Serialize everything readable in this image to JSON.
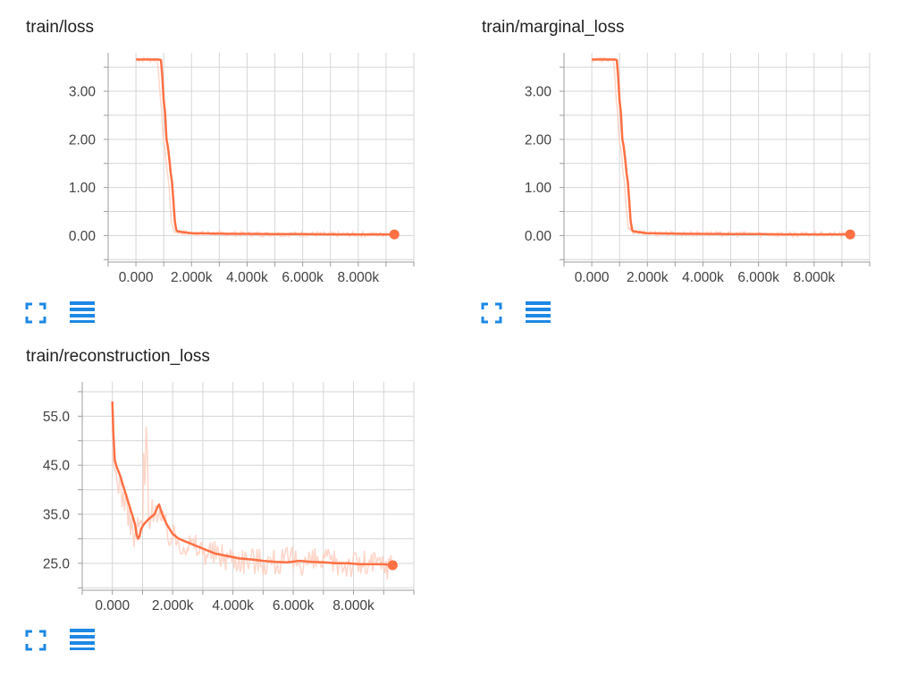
{
  "colors": {
    "line": "#ff7043",
    "raw": "#ffccbc",
    "grid": "#d6d6d6",
    "axis": "#9e9e9e",
    "icon": "#1e88e5"
  },
  "icons": {
    "expand": "fullscreen-icon",
    "data": "data-table-icon"
  },
  "chart_data": [
    {
      "type": "line",
      "title": "train/loss",
      "xlabel": "",
      "ylabel": "",
      "xlim": [
        -1000,
        10000
      ],
      "ylim": [
        -0.55,
        3.8
      ],
      "x_ticks": [
        0,
        2000,
        4000,
        6000,
        8000
      ],
      "x_tick_labels": [
        "0.000",
        "2.000k",
        "4.000k",
        "6.000k",
        "8.000k"
      ],
      "y_ticks": [
        0,
        1,
        2,
        3
      ],
      "y_tick_labels": [
        "0.00",
        "1.00",
        "2.00",
        "3.00"
      ],
      "grid": true,
      "series": [
        {
          "points": [
            [
              0,
              3.66
            ],
            [
              400,
              3.66
            ],
            [
              800,
              3.66
            ],
            [
              900,
              3.65
            ],
            [
              950,
              3.3
            ],
            [
              1000,
              2.8
            ],
            [
              1050,
              2.55
            ],
            [
              1100,
              2.0
            ],
            [
              1150,
              1.85
            ],
            [
              1200,
              1.6
            ],
            [
              1250,
              1.3
            ],
            [
              1300,
              1.1
            ],
            [
              1350,
              0.7
            ],
            [
              1400,
              0.3
            ],
            [
              1450,
              0.12
            ],
            [
              1500,
              0.09
            ],
            [
              1700,
              0.07
            ],
            [
              2000,
              0.05
            ],
            [
              3000,
              0.04
            ],
            [
              4000,
              0.035
            ],
            [
              5000,
              0.03
            ],
            [
              6000,
              0.03
            ],
            [
              7000,
              0.025
            ],
            [
              8000,
              0.025
            ],
            [
              9300,
              0.025
            ]
          ]
        }
      ]
    },
    {
      "type": "line",
      "title": "train/marginal_loss",
      "xlabel": "",
      "ylabel": "",
      "xlim": [
        -1000,
        10000
      ],
      "ylim": [
        -0.55,
        3.8
      ],
      "x_ticks": [
        0,
        2000,
        4000,
        6000,
        8000
      ],
      "x_tick_labels": [
        "0.000",
        "2.000k",
        "4.000k",
        "6.000k",
        "8.000k"
      ],
      "y_ticks": [
        0,
        1,
        2,
        3
      ],
      "y_tick_labels": [
        "0.00",
        "1.00",
        "2.00",
        "3.00"
      ],
      "grid": true,
      "series": [
        {
          "points": [
            [
              0,
              3.66
            ],
            [
              400,
              3.66
            ],
            [
              800,
              3.66
            ],
            [
              900,
              3.65
            ],
            [
              950,
              3.3
            ],
            [
              1000,
              2.8
            ],
            [
              1050,
              2.55
            ],
            [
              1100,
              2.0
            ],
            [
              1150,
              1.85
            ],
            [
              1200,
              1.6
            ],
            [
              1250,
              1.3
            ],
            [
              1300,
              1.1
            ],
            [
              1350,
              0.7
            ],
            [
              1400,
              0.3
            ],
            [
              1450,
              0.12
            ],
            [
              1500,
              0.09
            ],
            [
              1700,
              0.07
            ],
            [
              2000,
              0.05
            ],
            [
              3000,
              0.04
            ],
            [
              4000,
              0.035
            ],
            [
              5000,
              0.03
            ],
            [
              6000,
              0.03
            ],
            [
              7000,
              0.025
            ],
            [
              8000,
              0.025
            ],
            [
              9300,
              0.025
            ]
          ]
        }
      ]
    },
    {
      "type": "line",
      "title": "train/reconstruction_loss",
      "xlabel": "",
      "ylabel": "",
      "xlim": [
        -1000,
        10000
      ],
      "ylim": [
        19.5,
        62
      ],
      "x_ticks": [
        0,
        2000,
        4000,
        6000,
        8000
      ],
      "x_tick_labels": [
        "0.000",
        "2.000k",
        "4.000k",
        "6.000k",
        "8.000k"
      ],
      "y_ticks": [
        25,
        35,
        45,
        55
      ],
      "y_tick_labels": [
        "25.0",
        "35.0",
        "45.0",
        "55.0"
      ],
      "grid": true,
      "series": [
        {
          "points": [
            [
              0,
              58
            ],
            [
              30,
              52
            ],
            [
              80,
              46
            ],
            [
              150,
              44.5
            ],
            [
              250,
              43
            ],
            [
              350,
              41
            ],
            [
              450,
              39
            ],
            [
              550,
              37
            ],
            [
              650,
              35
            ],
            [
              750,
              33
            ],
            [
              800,
              31
            ],
            [
              850,
              30
            ],
            [
              900,
              30.5
            ],
            [
              950,
              32
            ],
            [
              1050,
              33
            ],
            [
              1200,
              34
            ],
            [
              1400,
              35
            ],
            [
              1500,
              36.5
            ],
            [
              1550,
              37
            ],
            [
              1650,
              35
            ],
            [
              1800,
              33
            ],
            [
              2000,
              31
            ],
            [
              2200,
              30
            ],
            [
              2400,
              29.5
            ],
            [
              2600,
              29
            ],
            [
              3000,
              28
            ],
            [
              3400,
              27
            ],
            [
              3800,
              26.5
            ],
            [
              4200,
              26
            ],
            [
              4600,
              25.8
            ],
            [
              5000,
              25.5
            ],
            [
              5400,
              25.3
            ],
            [
              5800,
              25.2
            ],
            [
              6200,
              25.5
            ],
            [
              6600,
              25.3
            ],
            [
              7000,
              25.2
            ],
            [
              7400,
              25
            ],
            [
              7800,
              25
            ],
            [
              8200,
              24.8
            ],
            [
              8600,
              24.8
            ],
            [
              9000,
              24.8
            ],
            [
              9300,
              24.6
            ]
          ]
        }
      ]
    }
  ]
}
